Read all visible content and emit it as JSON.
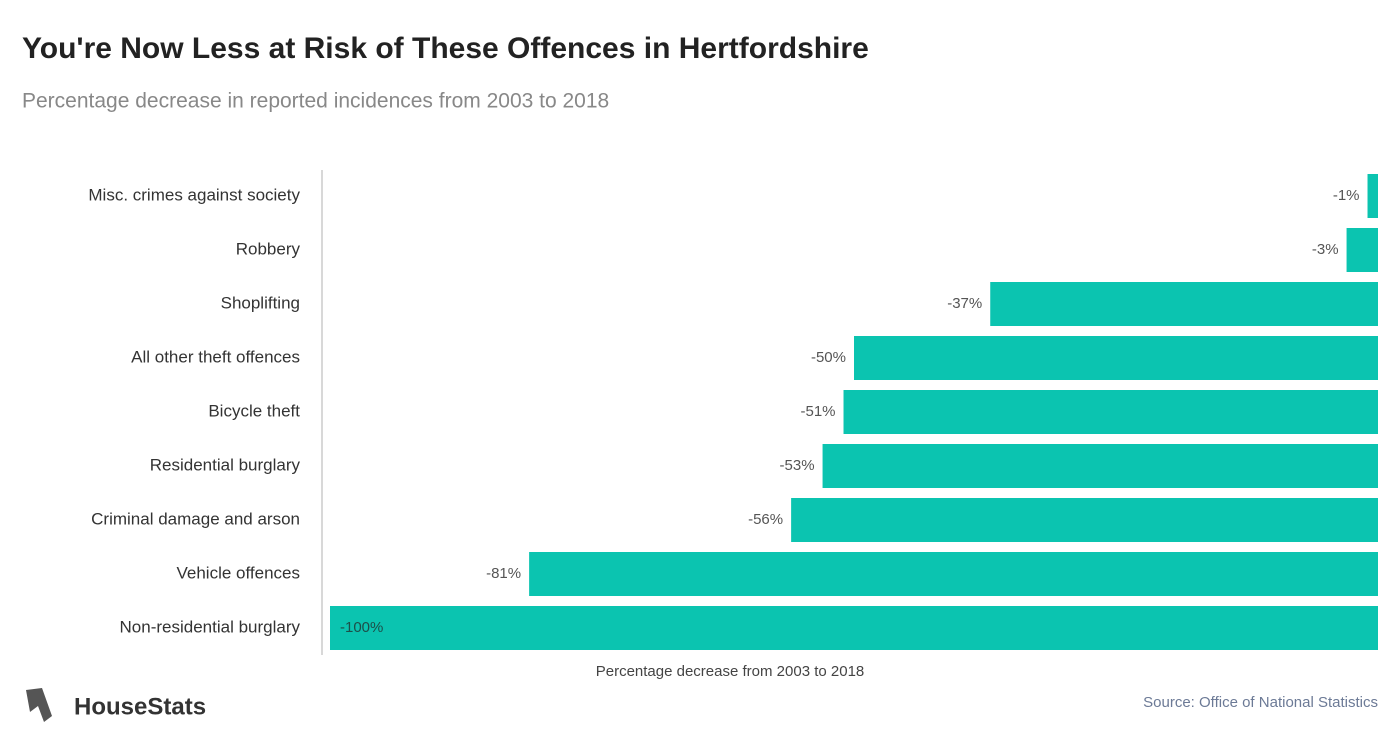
{
  "chart_data": {
    "type": "bar",
    "orientation": "horizontal",
    "title": "You're Now Less at Risk of These Offences in Hertfordshire",
    "subtitle": "Percentage decrease in reported incidences from 2003 to 2018",
    "categories": [
      "Misc. crimes against society",
      "Robbery",
      "Shoplifting",
      "All other theft offences",
      "Bicycle theft",
      "Residential burglary",
      "Criminal damage and arson",
      "Vehicle offences",
      "Non-residential burglary"
    ],
    "values": [
      -1,
      -3,
      -37,
      -50,
      -51,
      -53,
      -56,
      -81,
      -100
    ],
    "value_labels": [
      "-1%",
      "-3%",
      "-37%",
      "-50%",
      "-51%",
      "-53%",
      "-56%",
      "-81%",
      "-100%"
    ],
    "color": "#0bc4b0",
    "xlim": [
      -100,
      0
    ],
    "x_label": "Percentage decrease from 2003 to 2018",
    "source": "Source: Office of National Statistics",
    "brand": "HouseStats"
  }
}
